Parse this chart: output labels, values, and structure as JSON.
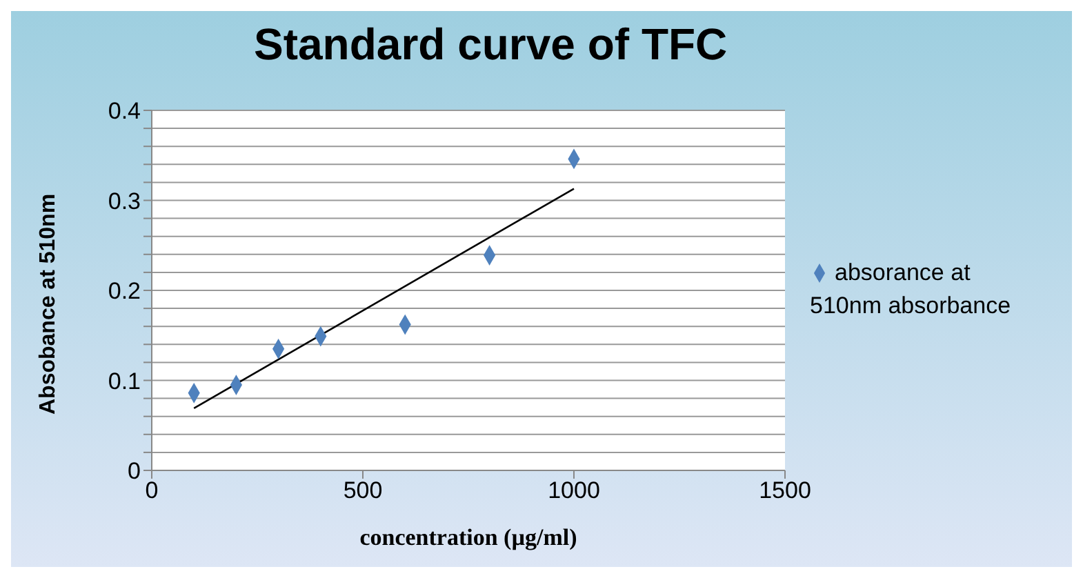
{
  "chart_data": {
    "type": "scatter",
    "title": "Standard curve of TFC",
    "xlabel": "concentration (µg/ml)",
    "ylabel": "Absobance at 510nm",
    "series": [
      {
        "name": "absorance at 510nm absorbance",
        "marker": "diamond",
        "color": "#4f81bd",
        "x": [
          100,
          200,
          300,
          400,
          600,
          800,
          1000
        ],
        "values": [
          0.086,
          0.095,
          0.135,
          0.149,
          0.162,
          0.239,
          0.346
        ]
      },
      {
        "type": "line",
        "color": "#000000",
        "x": [
          100,
          1000
        ],
        "values": [
          0.069,
          0.313
        ]
      }
    ],
    "xlim": [
      0,
      1500
    ],
    "xticks": [
      0,
      500,
      1000,
      1500
    ],
    "ylim": [
      0,
      0.4
    ],
    "yticks": [
      0,
      {
        "value": 0.02,
        "label": null
      },
      {
        "value": 0.04,
        "label": null
      },
      {
        "value": 0.06,
        "label": null
      },
      {
        "value": 0.08,
        "label": null
      },
      0.1,
      {
        "value": 0.12,
        "label": null
      },
      {
        "value": 0.14,
        "label": null
      },
      {
        "value": 0.16,
        "label": null
      },
      {
        "value": 0.18,
        "label": null
      },
      0.2,
      {
        "value": 0.22,
        "label": null
      },
      {
        "value": 0.24,
        "label": null
      },
      {
        "value": 0.26,
        "label": null
      },
      {
        "value": 0.28,
        "label": null
      },
      0.3,
      {
        "value": 0.32,
        "label": null
      },
      {
        "value": 0.34,
        "label": null
      },
      {
        "value": 0.36,
        "label": null
      },
      {
        "value": 0.38,
        "label": null
      },
      0.4
    ],
    "grid": "y",
    "legend": "right"
  }
}
